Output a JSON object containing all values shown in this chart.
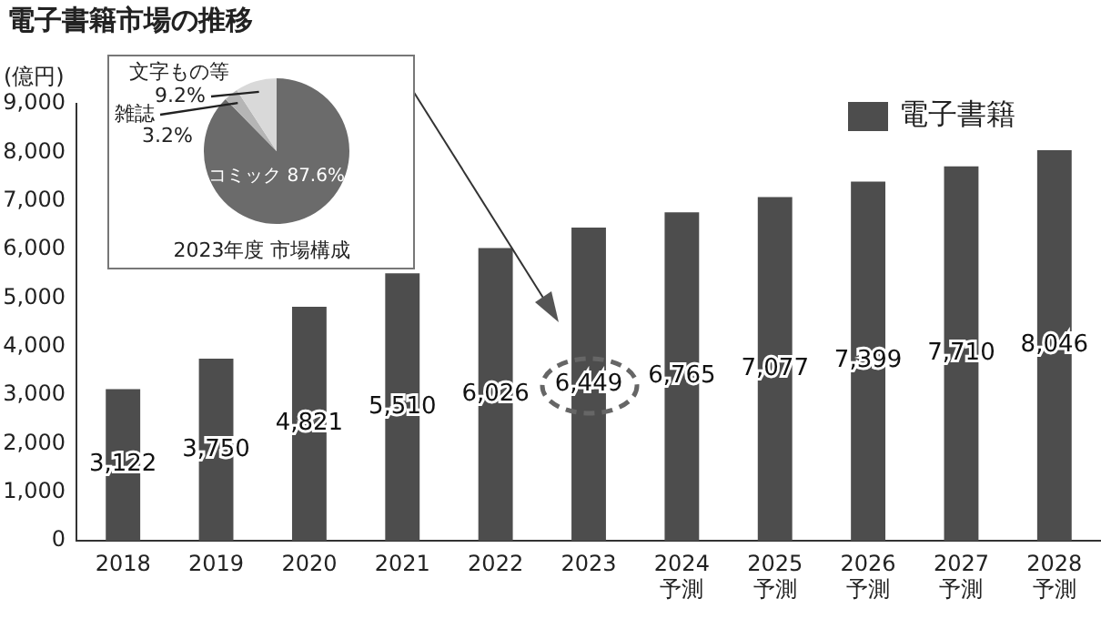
{
  "chart_data": [
    {
      "type": "bar",
      "title": "電子書籍市場の推移",
      "ylabel": "(億円)",
      "categories": [
        "2018",
        "2019",
        "2020",
        "2021",
        "2022",
        "2023",
        "2024\n予測",
        "2025\n予測",
        "2026\n予測",
        "2027\n予測",
        "2028\n予測"
      ],
      "series": [
        {
          "name": "電子書籍",
          "color": "#4d4d4d",
          "values": [
            3122,
            3750,
            4821,
            5510,
            6026,
            6449,
            6765,
            7077,
            7399,
            7710,
            8046
          ],
          "value_labels": [
            "3,122",
            "3,750",
            "4,821",
            "5,510",
            "6,026",
            "6,449",
            "6,765",
            "7,077",
            "7,399",
            "7,710",
            "8,046"
          ]
        }
      ],
      "ylim": [
        0,
        9000
      ],
      "yticks": [
        0,
        {
          "value": 1000,
          "label": "1,000"
        },
        {
          "value": 2000,
          "label": "2,000"
        },
        {
          "value": 3000,
          "label": "3,000"
        },
        {
          "value": 4000,
          "label": "4,000"
        },
        {
          "value": 5000,
          "label": "5,000"
        },
        {
          "value": 6000,
          "label": "6,000"
        },
        {
          "value": 7000,
          "label": "7,000"
        },
        {
          "value": 8000,
          "label": "8,000"
        },
        {
          "value": 9000,
          "label": "9,000"
        }
      ],
      "legend": "top right",
      "grid": false
    },
    {
      "type": "pie",
      "title": "2023年度 市場構成",
      "categories": [
        "コミック",
        "雑誌",
        "文字もの等"
      ],
      "values": [
        87.6,
        3.2,
        9.2
      ],
      "colors": [
        "#6b6b6b",
        "#b5b5b5",
        "#d9d9d9"
      ],
      "value_labels": [
        "87.6%",
        "3.2%",
        "9.2%"
      ]
    }
  ]
}
